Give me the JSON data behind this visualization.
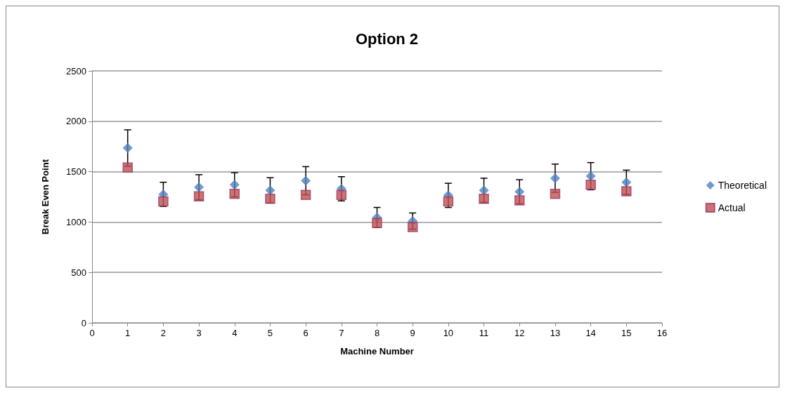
{
  "chart_data": {
    "type": "scatter",
    "title": "Option 2",
    "xlabel": "Machine Number",
    "ylabel": "Break Even Point",
    "x": [
      1,
      2,
      3,
      4,
      5,
      6,
      7,
      8,
      9,
      10,
      11,
      12,
      13,
      14,
      15
    ],
    "series": [
      {
        "name": "Theoretical",
        "color": "#4f81bd",
        "marker": "diamond",
        "values": [
          1735,
          1275,
          1345,
          1370,
          1315,
          1410,
          1330,
          1045,
          1010,
          1265,
          1315,
          1300,
          1435,
          1455,
          1395
        ],
        "errors": [
          180,
          120,
          125,
          120,
          125,
          140,
          120,
          100,
          80,
          120,
          120,
          120,
          140,
          135,
          120
        ]
      },
      {
        "name": "Actual",
        "color": "#c0504d",
        "marker": "square",
        "values": [
          1540,
          1205,
          1255,
          1280,
          1230,
          1270,
          1270,
          990,
          950,
          1205,
          1230,
          1215,
          1280,
          1370,
          1305
        ]
      }
    ],
    "xlim": [
      0,
      16
    ],
    "xticks": [
      0,
      1,
      2,
      3,
      4,
      5,
      6,
      7,
      8,
      9,
      10,
      11,
      12,
      13,
      14,
      15,
      16
    ],
    "ylim": [
      0,
      2500
    ],
    "yticks": [
      0,
      500,
      1000,
      1500,
      2000,
      2500
    ],
    "grid": "y",
    "legend": "right"
  }
}
